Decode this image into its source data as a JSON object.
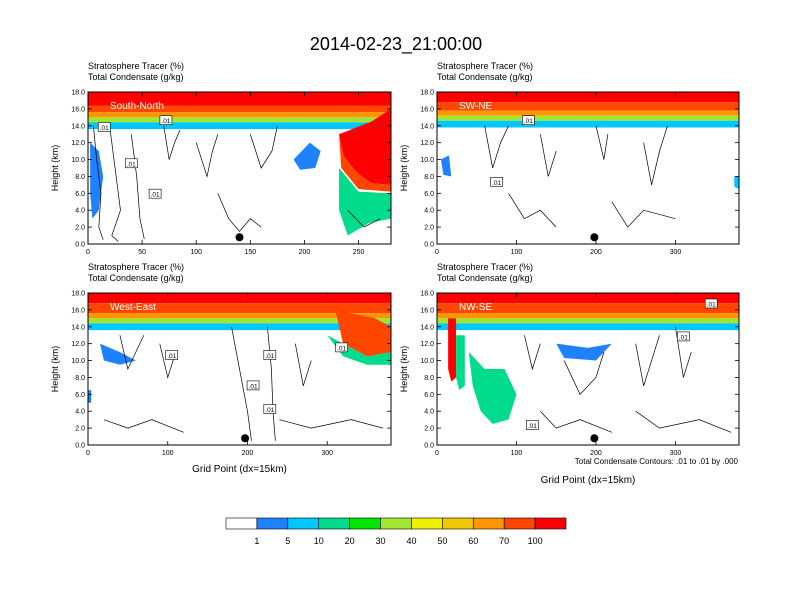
{
  "title": "2014-02-23_21:00:00",
  "colors": {
    "clear": "#ffffff",
    "c1": "#1e82ff",
    "c2": "#00c8ff",
    "c3": "#00dc8c",
    "c4": "#00e600",
    "c5": "#a0e632",
    "c6": "#f0f000",
    "c7": "#f0c800",
    "c8": "#ff9600",
    "c9": "#ff4600",
    "c10": "#ff0000"
  },
  "colorbar": {
    "labels": [
      "1",
      "5",
      "10",
      "20",
      "30",
      "40",
      "50",
      "60",
      "70",
      "100"
    ]
  },
  "footnote": "Total Condensate Contours: .01 to .01 by .000",
  "chart_data": [
    {
      "type": "heatmap",
      "panel_label": "South-North",
      "header_line1": "Stratosphere Tracer   (%)",
      "header_line2": "Total Condensate   (g/kg)",
      "ylabel": "Height (km)",
      "xlabel": "",
      "xlim": [
        0,
        280
      ],
      "ylim": [
        0,
        18
      ],
      "xticks": [
        "0",
        "50",
        "100",
        "150",
        "200",
        "250"
      ],
      "xtick_values": [
        0,
        50,
        100,
        150,
        200,
        250
      ],
      "yticks": [
        "0.0",
        "2.0",
        "4.0",
        "6.0",
        "8.0",
        "10.0",
        "12.0",
        "14.0",
        "16.0",
        "18.0"
      ],
      "contour_labels": [
        ".01",
        ".01",
        ".01",
        ".01"
      ],
      "contour_label_points": [
        [
          15,
          13.8
        ],
        [
          72,
          14.6
        ],
        [
          62,
          5.9
        ],
        [
          40,
          9.5
        ]
      ],
      "marker_x": 140
    },
    {
      "type": "heatmap",
      "panel_label": "SW-NE",
      "header_line1": "Stratosphere Tracer   (%)",
      "header_line2": "Total Condensate   (g/kg)",
      "ylabel": "Height (km)",
      "xlabel": "",
      "xlim": [
        0,
        380
      ],
      "ylim": [
        0,
        18
      ],
      "xticks": [
        "0",
        "100",
        "200",
        "300"
      ],
      "xtick_values": [
        0,
        100,
        200,
        300
      ],
      "yticks": [
        "0.0",
        "2.0",
        "4.0",
        "6.0",
        "8.0",
        "10.0",
        "12.0",
        "14.0",
        "16.0",
        "18.0"
      ],
      "contour_labels": [
        ".01",
        ".01"
      ],
      "contour_label_points": [
        [
          115,
          14.6
        ],
        [
          75,
          7.3
        ]
      ],
      "marker_x": 198
    },
    {
      "type": "heatmap",
      "panel_label": "West-East",
      "header_line1": "Stratosphere Tracer   (%)",
      "header_line2": "Total Condensate   (g/kg)",
      "ylabel": "Height (km)",
      "xlabel": "Grid Point (dx=15km)",
      "xlim": [
        0,
        380
      ],
      "ylim": [
        0,
        18
      ],
      "xticks": [
        "0",
        "100",
        "200",
        "300"
      ],
      "xtick_values": [
        0,
        100,
        200,
        300
      ],
      "yticks": [
        "0.0",
        "2.0",
        "4.0",
        "6.0",
        "8.0",
        "10.0",
        "12.0",
        "14.0",
        "16.0",
        "18.0"
      ],
      "contour_labels": [
        ".01",
        ".01",
        ".01",
        ".01",
        ".01"
      ],
      "contour_label_points": [
        [
          105,
          10.6
        ],
        [
          228,
          10.6
        ],
        [
          207,
          7.0
        ],
        [
          228,
          4.2
        ],
        [
          318,
          11.5
        ]
      ],
      "marker_x": 197
    },
    {
      "type": "heatmap",
      "panel_label": "NW-SE",
      "header_line1": "Stratosphere Tracer   (%)",
      "header_line2": "Total Condensate   (g/kg)",
      "ylabel": "Height (km)",
      "xlabel": "Grid Point (dx=15km)",
      "xlim": [
        0,
        380
      ],
      "ylim": [
        0,
        18
      ],
      "xticks": [
        "0",
        "100",
        "200",
        "300"
      ],
      "xtick_values": [
        0,
        100,
        200,
        300
      ],
      "yticks": [
        "0.0",
        "2.0",
        "4.0",
        "6.0",
        "8.0",
        "10.0",
        "12.0",
        "14.0",
        "16.0",
        "18.0"
      ],
      "contour_labels": [
        ".01",
        ".01",
        ".01"
      ],
      "contour_label_points": [
        [
          345,
          16.7
        ],
        [
          310,
          12.8
        ],
        [
          120,
          2.3
        ]
      ],
      "marker_x": 198
    }
  ]
}
